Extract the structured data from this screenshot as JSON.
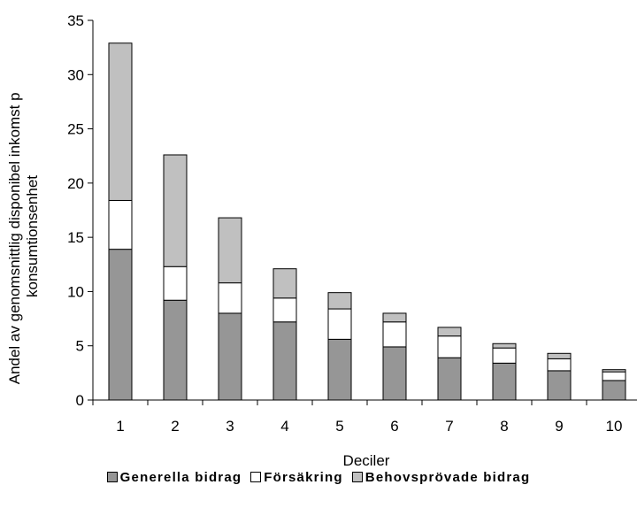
{
  "chart_data": {
    "type": "bar",
    "stacked": true,
    "categories": [
      "1",
      "2",
      "3",
      "4",
      "5",
      "6",
      "7",
      "8",
      "9",
      "10"
    ],
    "series": [
      {
        "name": "Generella bidrag",
        "color": "#969696",
        "values": [
          13.9,
          9.2,
          8.0,
          7.2,
          5.6,
          4.9,
          3.9,
          3.4,
          2.7,
          1.8
        ]
      },
      {
        "name": "Försäkring",
        "color": "#ffffff",
        "values": [
          4.5,
          3.1,
          2.8,
          2.2,
          2.8,
          2.3,
          2.0,
          1.4,
          1.1,
          0.8
        ]
      },
      {
        "name": "Behovsprövade bidrag",
        "color": "#c0c0c0",
        "values": [
          14.5,
          10.3,
          6.0,
          2.7,
          1.5,
          0.8,
          0.8,
          0.4,
          0.5,
          0.2
        ]
      }
    ],
    "xlabel": "Deciler",
    "ylabel": "Andel av genomsnittlig disponibel inkomst p konsumtionsenhet",
    "ylabel_lines": [
      "Andel av genomsnittlig disponibel inkomst p",
      "konsumtionsenhet"
    ],
    "ylim": [
      0,
      35
    ],
    "yticks": [
      "0",
      "5",
      "10",
      "15",
      "20",
      "25",
      "30",
      "35"
    ],
    "grid": false,
    "legend_position": "bottom"
  }
}
